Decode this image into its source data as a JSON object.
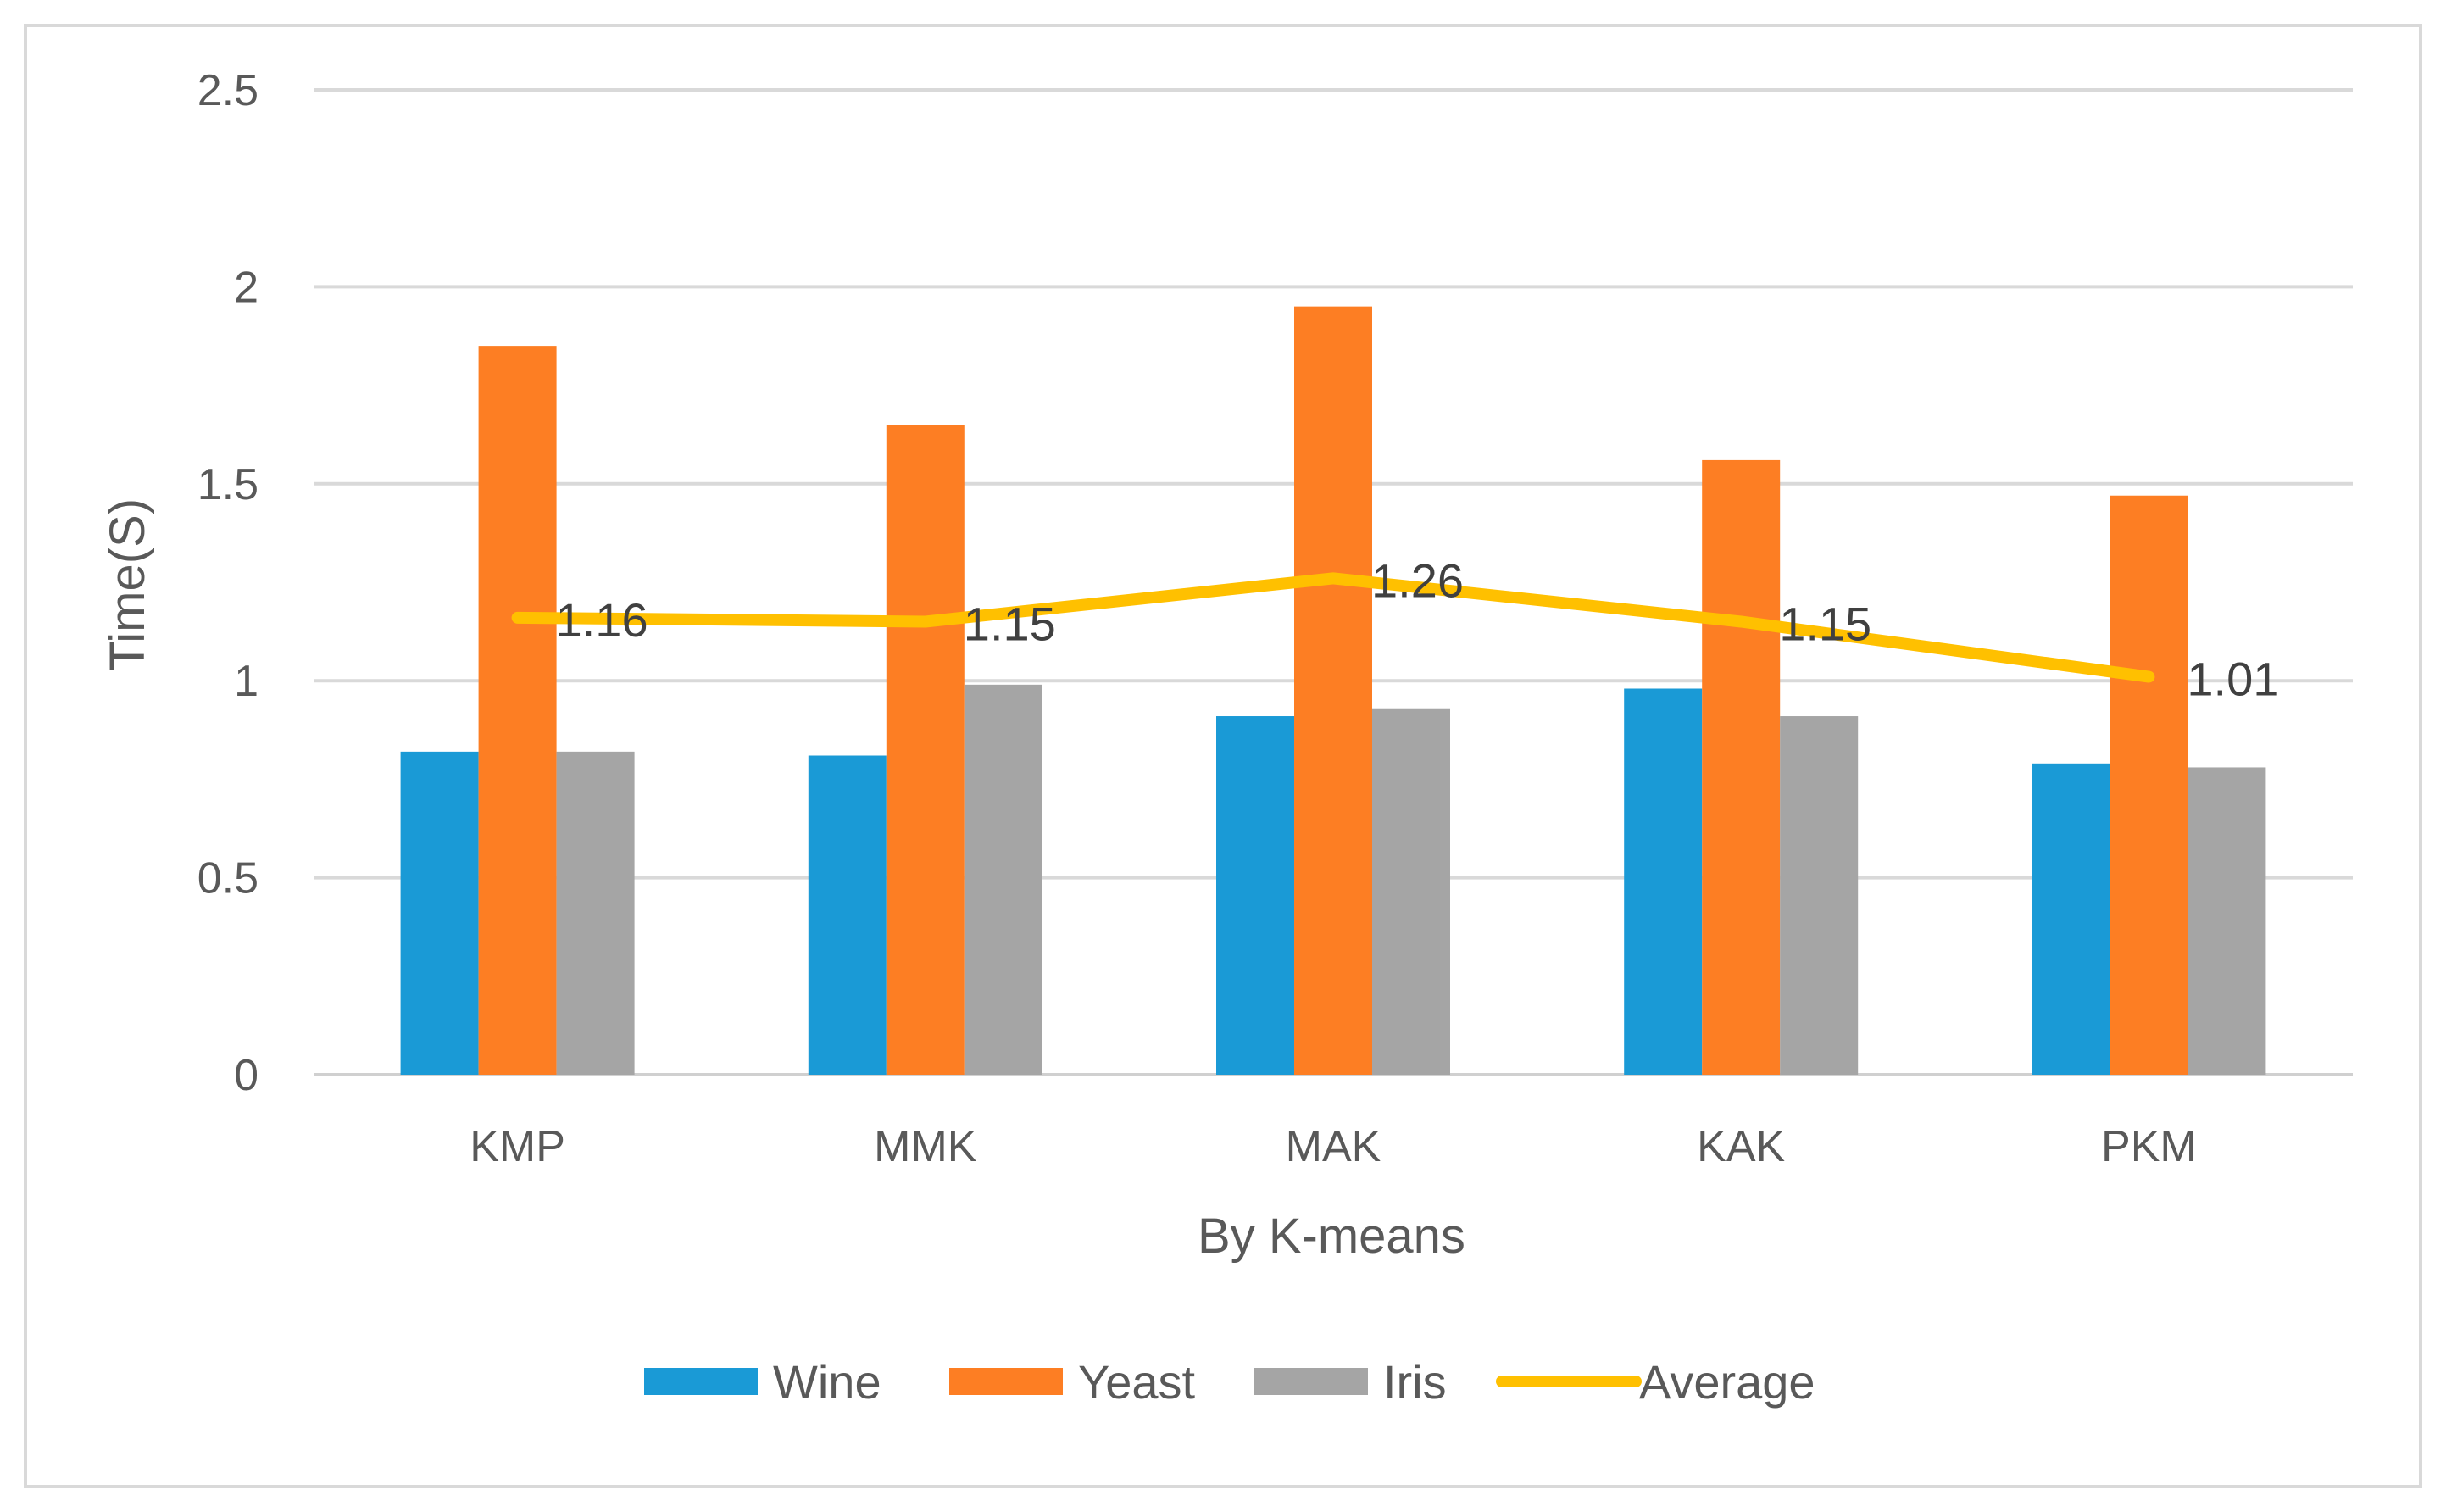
{
  "chart_data": {
    "type": "bar",
    "title": "",
    "xlabel": "By K-means",
    "ylabel": "Time(S)",
    "ylim": [
      0,
      2.5
    ],
    "yticks": [
      0,
      0.5,
      1,
      1.5,
      2,
      2.5
    ],
    "ytick_labels": [
      "0",
      "0.5",
      "1",
      "1.5",
      "2",
      "2.5"
    ],
    "categories": [
      "KMP",
      "MMK",
      "MAK",
      "KAK",
      "PKM"
    ],
    "grid": true,
    "legend_position": "bottom",
    "series": [
      {
        "name": "Wine",
        "type": "bar",
        "color": "#1a9ad6",
        "values": [
          0.82,
          0.81,
          0.91,
          0.98,
          0.79
        ]
      },
      {
        "name": "Yeast",
        "type": "bar",
        "color": "#fd7e23",
        "values": [
          1.85,
          1.65,
          1.95,
          1.56,
          1.47
        ]
      },
      {
        "name": "Iris",
        "type": "bar",
        "color": "#a5a5a5",
        "values": [
          0.82,
          0.99,
          0.93,
          0.91,
          0.78
        ]
      },
      {
        "name": "Average",
        "type": "line",
        "color": "#ffc000",
        "values": [
          1.16,
          1.15,
          1.26,
          1.15,
          1.01
        ],
        "data_labels": [
          "1.16",
          "1.15",
          "1.26",
          "1.15",
          "1.01"
        ]
      }
    ]
  }
}
